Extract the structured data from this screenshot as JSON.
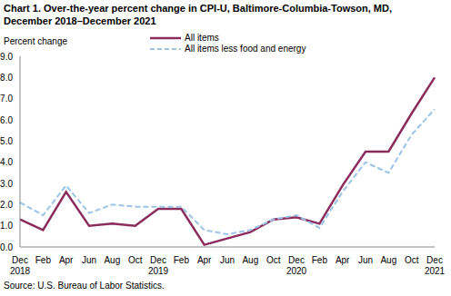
{
  "chart_data": {
    "type": "line",
    "title": "Chart 1. Over-the-year percent change in CPI-U, Baltimore-Columbia-Towson, MD, December 2018–December 2021",
    "y_label": "Percent change",
    "source": "Source: U.S. Bureau of Labor Statistics.",
    "categories": [
      "Dec 2018",
      "Feb",
      "Apr",
      "Jun",
      "Aug",
      "Oct",
      "Dec 2019",
      "Feb",
      "Apr",
      "Jun",
      "Aug",
      "Oct",
      "Dec 2020",
      "Feb",
      "Apr",
      "Jun",
      "Aug",
      "Oct",
      "Dec 2021"
    ],
    "series": [
      {
        "name": "All items",
        "color": "#8b2c5c",
        "line_style": "solid",
        "marker": "none",
        "values": [
          1.3,
          0.8,
          2.6,
          1.0,
          1.1,
          1.0,
          1.8,
          1.8,
          0.1,
          0.4,
          0.7,
          1.3,
          1.4,
          1.1,
          2.9,
          4.5,
          4.5,
          6.3,
          8.0
        ]
      },
      {
        "name": "All items less food and energy",
        "color": "#9cc3e8",
        "line_style": "dashed",
        "marker": "none",
        "values": [
          2.1,
          1.5,
          2.9,
          1.6,
          2.0,
          1.9,
          1.9,
          1.9,
          0.8,
          0.6,
          0.8,
          1.3,
          1.5,
          0.9,
          2.6,
          4.0,
          3.5,
          5.3,
          6.5
        ]
      }
    ],
    "ylim": [
      0,
      9
    ],
    "yticks": [
      {
        "value": 0,
        "label": "0.0"
      },
      {
        "value": 1,
        "label": "1.0"
      },
      {
        "value": 2,
        "label": "2.0"
      },
      {
        "value": 3,
        "label": "3.0"
      },
      {
        "value": 4,
        "label": "4.0"
      },
      {
        "value": 5,
        "label": "5.0"
      },
      {
        "value": 6,
        "label": "6.0"
      },
      {
        "value": 7,
        "label": "7.0"
      },
      {
        "value": 8,
        "label": "8.0"
      },
      {
        "value": 9,
        "label": "9.0"
      }
    ],
    "grid": false,
    "legend": "top"
  }
}
